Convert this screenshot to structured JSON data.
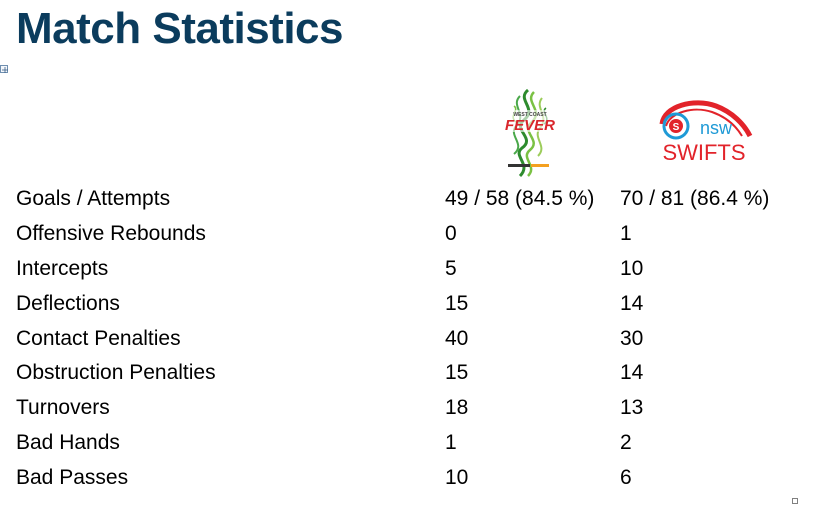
{
  "title": "Match Statistics",
  "logos": {
    "fever": {
      "icon": "fever-logo-icon",
      "brand_text": "FEVER",
      "colors": [
        "#2e8b2e",
        "#7ac143",
        "#d9262c",
        "#f4a020"
      ]
    },
    "swifts": {
      "icon": "swifts-logo-icon",
      "brand_text": "SWIFTS",
      "sub_text": "nsw",
      "colors": [
        "#e2232a",
        "#1f9ad6"
      ]
    }
  },
  "stats": [
    {
      "label": "Goals / Attempts",
      "fever": "49 / 58 (84.5 %)",
      "swifts": "70 / 81 (86.4 %)"
    },
    {
      "label": "Offensive Rebounds",
      "fever": "0",
      "swifts": "1"
    },
    {
      "label": "Intercepts",
      "fever": "5",
      "swifts": "10"
    },
    {
      "label": "Deflections",
      "fever": "15",
      "swifts": "14"
    },
    {
      "label": "Contact Penalties",
      "fever": "40",
      "swifts": "30"
    },
    {
      "label": "Obstruction Penalties",
      "fever": "15",
      "swifts": "14"
    },
    {
      "label": "Turnovers",
      "fever": "18",
      "swifts": "13"
    },
    {
      "label": "Bad Hands",
      "fever": "1",
      "swifts": "2"
    },
    {
      "label": "Bad Passes",
      "fever": "10",
      "swifts": "6"
    }
  ]
}
